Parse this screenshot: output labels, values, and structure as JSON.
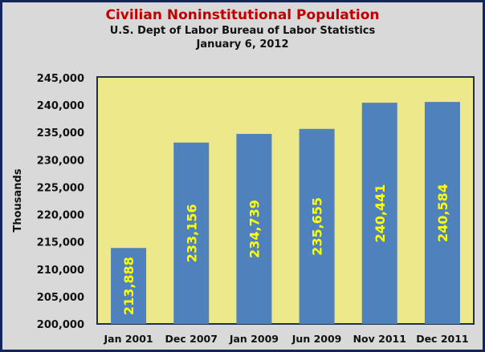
{
  "chart_data": {
    "type": "bar",
    "title": "Civilian Noninstitutional Population",
    "subtitle": "U.S. Dept of Labor Bureau of Labor Statistics",
    "date": "January 6, 2012",
    "xlabel": "",
    "ylabel": "Thousands",
    "categories": [
      "Jan 2001",
      "Dec 2007",
      "Jan 2009",
      "Jun 2009",
      "Nov 2011",
      "Dec 2011"
    ],
    "values": [
      213888,
      233156,
      234739,
      235655,
      240441,
      240584
    ],
    "data_labels": [
      "213,888",
      "233,156",
      "234,739",
      "235,655",
      "240,441",
      "240,584"
    ],
    "ylim": [
      200000,
      245000
    ],
    "yticks": [
      "200,000",
      "205,000",
      "210,000",
      "215,000",
      "220,000",
      "225,000",
      "230,000",
      "235,000",
      "240,000",
      "245,000"
    ],
    "grid": false,
    "colors": {
      "bar": "#4f81bd",
      "plot_bg": "#ede98a",
      "label": "#ffff00",
      "title": "#c00000"
    }
  }
}
